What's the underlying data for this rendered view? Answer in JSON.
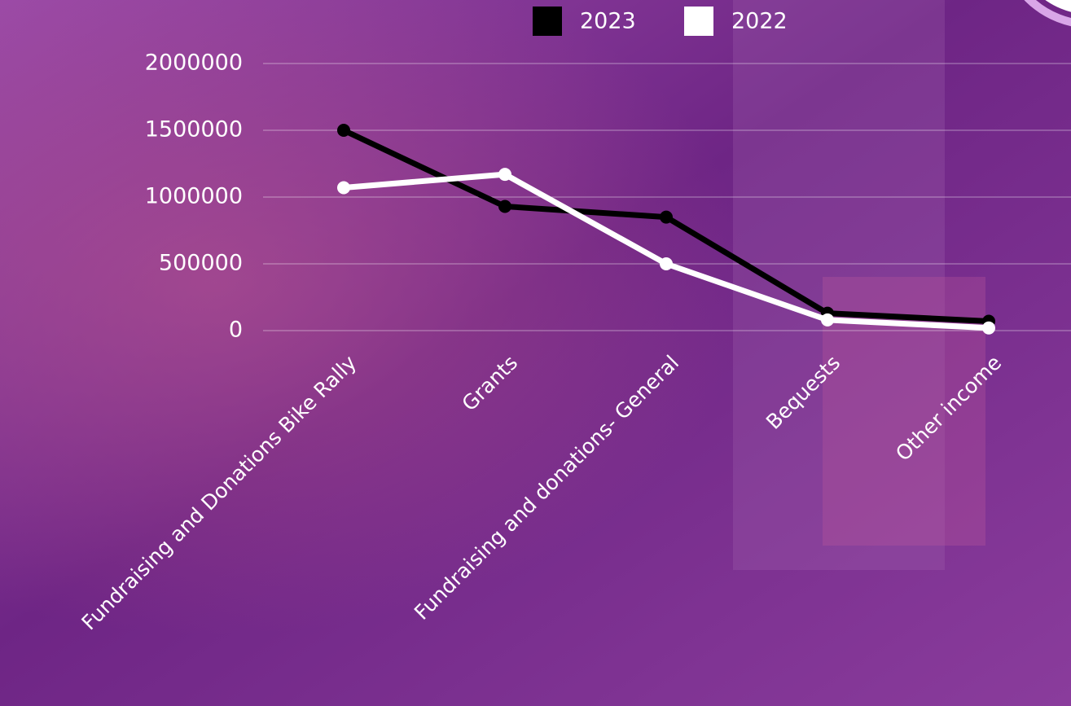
{
  "chart_data": {
    "type": "line",
    "categories": [
      "Fundraising and Donations Bike Rally",
      "Grants",
      "Fundraising and donations- General",
      "Bequests",
      "Other income"
    ],
    "series": [
      {
        "name": "2023",
        "color": "#000000",
        "values": [
          1500000,
          930000,
          850000,
          130000,
          70000
        ]
      },
      {
        "name": "2022",
        "color": "#ffffff",
        "values": [
          1070000,
          1170000,
          500000,
          80000,
          20000
        ]
      }
    ],
    "ylim": [
      0,
      2000000
    ],
    "yticks": [
      0,
      500000,
      1000000,
      1500000,
      2000000
    ],
    "grid": true,
    "legend": "top"
  }
}
